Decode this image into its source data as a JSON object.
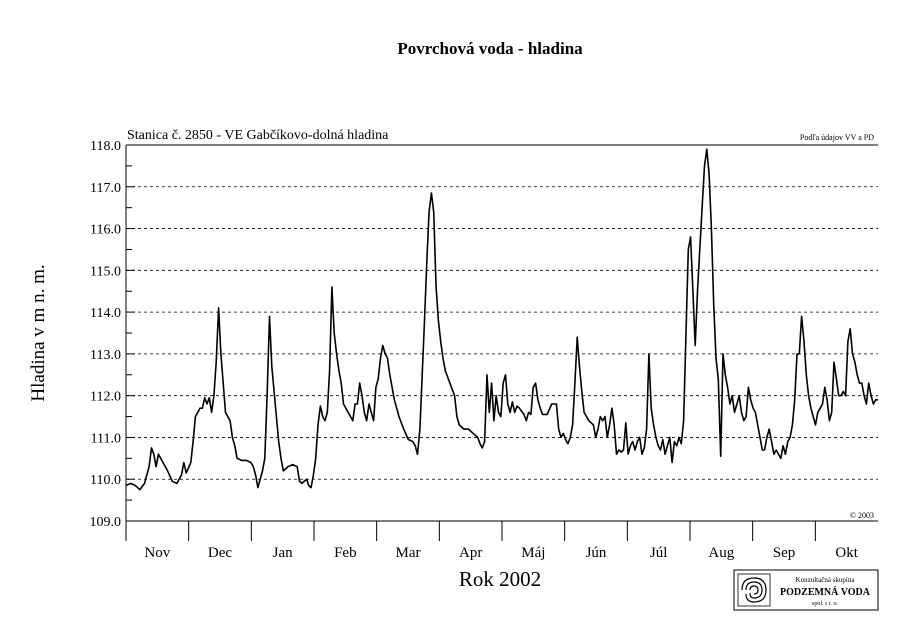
{
  "chart_data": {
    "type": "line",
    "title": "Povrchová voda - hladina",
    "subtitle": "Stanica č. 2850 - VE Gabčíkovo-dolná hladina",
    "source_note": "Podľa údajov VV a PD",
    "copyright": "© 2003",
    "xlabel": "Rok 2002",
    "ylabel": "Hladina v m n. m.",
    "ylim": [
      109.0,
      118.0
    ],
    "yticks": [
      "109.0",
      "110.0",
      "111.0",
      "112.0",
      "113.0",
      "114.0",
      "115.0",
      "116.0",
      "117.0",
      "118.0"
    ],
    "months": [
      "Nov",
      "Dec",
      "Jan",
      "Feb",
      "Mar",
      "Apr",
      "Máj",
      "Jún",
      "Júl",
      "Aug",
      "Sep",
      "Okt"
    ],
    "grid": "horizontal-dashed",
    "logo": {
      "top": "Konzultačná skupina",
      "name": "PODZEMNÁ VODA",
      "bottom": "spol. s r. o."
    },
    "series": [
      {
        "points": [
          [
            0,
            109.85
          ],
          [
            2,
            109.9
          ],
          [
            4,
            109.85
          ],
          [
            6,
            109.75
          ],
          [
            8,
            109.9
          ],
          [
            10,
            110.3
          ],
          [
            11,
            110.75
          ],
          [
            12,
            110.6
          ],
          [
            13,
            110.3
          ],
          [
            14,
            110.6
          ],
          [
            16,
            110.4
          ],
          [
            18,
            110.2
          ],
          [
            20,
            109.95
          ],
          [
            22,
            109.9
          ],
          [
            24,
            110.1
          ],
          [
            25,
            110.4
          ],
          [
            26,
            110.15
          ],
          [
            28,
            110.4
          ],
          [
            29,
            110.9
          ],
          [
            30,
            111.5
          ],
          [
            32,
            111.7
          ],
          [
            33,
            111.7
          ],
          [
            34,
            111.95
          ],
          [
            35,
            111.8
          ],
          [
            36,
            111.95
          ],
          [
            37,
            111.6
          ],
          [
            38,
            112.0
          ],
          [
            39,
            112.8
          ],
          [
            40,
            114.1
          ],
          [
            41,
            113.0
          ],
          [
            42,
            112.3
          ],
          [
            43,
            111.6
          ],
          [
            44,
            111.5
          ],
          [
            45,
            111.4
          ],
          [
            46,
            111.0
          ],
          [
            47,
            110.8
          ],
          [
            48,
            110.5
          ],
          [
            50,
            110.45
          ],
          [
            52,
            110.45
          ],
          [
            54,
            110.4
          ],
          [
            55,
            110.3
          ],
          [
            56,
            110.1
          ],
          [
            57,
            109.8
          ],
          [
            58,
            110.0
          ],
          [
            59,
            110.2
          ],
          [
            60,
            110.5
          ],
          [
            61,
            112.0
          ],
          [
            62,
            113.9
          ],
          [
            63,
            112.7
          ],
          [
            64,
            112.1
          ],
          [
            65,
            111.5
          ],
          [
            66,
            110.9
          ],
          [
            67,
            110.5
          ],
          [
            68,
            110.2
          ],
          [
            70,
            110.3
          ],
          [
            72,
            110.35
          ],
          [
            74,
            110.3
          ],
          [
            75,
            109.95
          ],
          [
            76,
            109.9
          ],
          [
            77,
            109.95
          ],
          [
            78,
            110.0
          ],
          [
            79,
            109.85
          ],
          [
            80,
            109.8
          ],
          [
            81,
            110.1
          ],
          [
            82,
            110.5
          ],
          [
            83,
            111.3
          ],
          [
            84,
            111.75
          ],
          [
            85,
            111.5
          ],
          [
            86,
            111.4
          ],
          [
            87,
            111.6
          ],
          [
            88,
            112.6
          ],
          [
            89,
            114.6
          ],
          [
            90,
            113.5
          ],
          [
            91,
            113.0
          ],
          [
            92,
            112.6
          ],
          [
            93,
            112.3
          ],
          [
            94,
            111.8
          ],
          [
            96,
            111.6
          ],
          [
            98,
            111.4
          ],
          [
            99,
            111.8
          ],
          [
            100,
            111.8
          ],
          [
            101,
            112.3
          ],
          [
            102,
            112.0
          ],
          [
            103,
            111.6
          ],
          [
            104,
            111.4
          ],
          [
            105,
            111.8
          ],
          [
            106,
            111.6
          ],
          [
            107,
            111.4
          ],
          [
            108,
            112.2
          ],
          [
            109,
            112.4
          ],
          [
            110,
            112.9
          ],
          [
            111,
            113.2
          ],
          [
            112,
            113.0
          ],
          [
            113,
            112.9
          ],
          [
            114,
            112.5
          ],
          [
            115,
            112.2
          ],
          [
            116,
            111.9
          ],
          [
            118,
            111.5
          ],
          [
            120,
            111.2
          ],
          [
            122,
            110.95
          ],
          [
            124,
            110.9
          ],
          [
            125,
            110.8
          ],
          [
            126,
            110.6
          ],
          [
            127,
            111.2
          ],
          [
            128,
            112.5
          ],
          [
            129,
            113.8
          ],
          [
            130,
            115.2
          ],
          [
            131,
            116.4
          ],
          [
            132,
            116.85
          ],
          [
            133,
            116.4
          ],
          [
            134,
            114.6
          ],
          [
            135,
            113.8
          ],
          [
            136,
            113.3
          ],
          [
            137,
            112.9
          ],
          [
            138,
            112.6
          ],
          [
            140,
            112.3
          ],
          [
            142,
            112.0
          ],
          [
            143,
            111.5
          ],
          [
            144,
            111.3
          ],
          [
            146,
            111.2
          ],
          [
            148,
            111.2
          ],
          [
            150,
            111.1
          ],
          [
            152,
            111.0
          ],
          [
            153,
            110.85
          ],
          [
            154,
            110.75
          ],
          [
            155,
            110.9
          ],
          [
            156,
            112.5
          ],
          [
            157,
            111.6
          ],
          [
            158,
            112.3
          ],
          [
            159,
            111.4
          ],
          [
            160,
            112.0
          ],
          [
            161,
            111.6
          ],
          [
            162,
            111.5
          ],
          [
            163,
            112.3
          ],
          [
            164,
            112.5
          ],
          [
            165,
            111.8
          ],
          [
            166,
            111.6
          ],
          [
            167,
            111.85
          ],
          [
            168,
            111.6
          ],
          [
            169,
            111.75
          ],
          [
            170,
            111.7
          ],
          [
            172,
            111.55
          ],
          [
            173,
            111.4
          ],
          [
            174,
            111.6
          ],
          [
            175,
            111.55
          ],
          [
            176,
            112.2
          ],
          [
            177,
            112.3
          ],
          [
            178,
            111.9
          ],
          [
            179,
            111.7
          ],
          [
            180,
            111.55
          ],
          [
            182,
            111.55
          ],
          [
            184,
            111.8
          ],
          [
            186,
            111.8
          ],
          [
            187,
            111.2
          ],
          [
            188,
            111.0
          ],
          [
            189,
            111.1
          ],
          [
            190,
            110.95
          ],
          [
            191,
            110.85
          ],
          [
            192,
            111.0
          ],
          [
            193,
            111.3
          ],
          [
            194,
            112.3
          ],
          [
            195,
            113.4
          ],
          [
            196,
            112.7
          ],
          [
            197,
            112.1
          ],
          [
            198,
            111.6
          ],
          [
            199,
            111.5
          ],
          [
            200,
            111.4
          ],
          [
            202,
            111.3
          ],
          [
            203,
            111.0
          ],
          [
            204,
            111.2
          ],
          [
            205,
            111.5
          ],
          [
            206,
            111.4
          ],
          [
            207,
            111.5
          ],
          [
            208,
            111.0
          ],
          [
            209,
            111.3
          ],
          [
            210,
            111.7
          ],
          [
            211,
            111.3
          ],
          [
            212,
            110.6
          ],
          [
            213,
            110.7
          ],
          [
            214,
            110.65
          ],
          [
            215,
            110.7
          ],
          [
            216,
            111.35
          ],
          [
            217,
            110.6
          ],
          [
            218,
            110.8
          ],
          [
            219,
            110.9
          ],
          [
            220,
            110.7
          ],
          [
            221,
            110.9
          ],
          [
            222,
            111.0
          ],
          [
            223,
            110.6
          ],
          [
            224,
            110.75
          ],
          [
            225,
            111.2
          ],
          [
            226,
            113.0
          ],
          [
            227,
            111.7
          ],
          [
            228,
            111.3
          ],
          [
            229,
            111.0
          ],
          [
            230,
            110.8
          ],
          [
            231,
            110.7
          ],
          [
            232,
            110.95
          ],
          [
            233,
            110.6
          ],
          [
            234,
            110.8
          ],
          [
            235,
            111.0
          ],
          [
            236,
            110.4
          ],
          [
            237,
            110.9
          ],
          [
            238,
            110.8
          ],
          [
            239,
            111.0
          ],
          [
            240,
            110.85
          ],
          [
            241,
            111.4
          ],
          [
            242,
            113.5
          ],
          [
            243,
            115.5
          ],
          [
            244,
            115.8
          ],
          [
            245,
            114.5
          ],
          [
            246,
            113.2
          ],
          [
            247,
            114.5
          ],
          [
            248,
            115.5
          ],
          [
            249,
            116.5
          ],
          [
            250,
            117.5
          ],
          [
            251,
            117.9
          ],
          [
            252,
            117.3
          ],
          [
            253,
            116.0
          ],
          [
            254,
            114.2
          ],
          [
            255,
            112.9
          ],
          [
            256,
            112.4
          ],
          [
            257,
            110.55
          ],
          [
            258,
            113.0
          ],
          [
            259,
            112.5
          ],
          [
            260,
            112.2
          ],
          [
            261,
            111.8
          ],
          [
            262,
            112.0
          ],
          [
            263,
            111.6
          ],
          [
            264,
            111.8
          ],
          [
            265,
            112.0
          ],
          [
            266,
            111.6
          ],
          [
            267,
            111.4
          ],
          [
            268,
            111.5
          ],
          [
            269,
            112.2
          ],
          [
            270,
            111.9
          ],
          [
            271,
            111.7
          ],
          [
            272,
            111.6
          ],
          [
            273,
            111.3
          ],
          [
            274,
            111.0
          ],
          [
            275,
            110.7
          ],
          [
            276,
            110.7
          ],
          [
            277,
            111.0
          ],
          [
            278,
            111.2
          ],
          [
            279,
            110.9
          ],
          [
            280,
            110.6
          ],
          [
            281,
            110.7
          ],
          [
            282,
            110.6
          ],
          [
            283,
            110.5
          ],
          [
            284,
            110.8
          ],
          [
            285,
            110.6
          ],
          [
            286,
            110.9
          ],
          [
            287,
            111.0
          ],
          [
            288,
            111.3
          ],
          [
            289,
            111.9
          ],
          [
            290,
            113.0
          ],
          [
            291,
            113.0
          ],
          [
            292,
            113.9
          ],
          [
            293,
            113.3
          ],
          [
            294,
            112.5
          ],
          [
            295,
            112.0
          ],
          [
            296,
            111.7
          ],
          [
            297,
            111.5
          ],
          [
            298,
            111.3
          ],
          [
            299,
            111.6
          ],
          [
            300,
            111.7
          ],
          [
            301,
            111.8
          ],
          [
            302,
            112.2
          ],
          [
            303,
            111.9
          ],
          [
            304,
            111.4
          ],
          [
            305,
            111.6
          ],
          [
            306,
            112.8
          ],
          [
            307,
            112.4
          ],
          [
            308,
            112.0
          ],
          [
            309,
            112.0
          ],
          [
            310,
            112.1
          ],
          [
            311,
            112.0
          ],
          [
            312,
            113.3
          ],
          [
            313,
            113.6
          ],
          [
            314,
            113.0
          ],
          [
            315,
            112.8
          ],
          [
            316,
            112.5
          ],
          [
            317,
            112.3
          ],
          [
            318,
            112.3
          ],
          [
            319,
            112.0
          ],
          [
            320,
            111.8
          ],
          [
            321,
            112.3
          ],
          [
            322,
            112.0
          ],
          [
            323,
            111.8
          ],
          [
            324,
            111.9
          ],
          [
            325,
            111.9
          ]
        ]
      }
    ]
  }
}
